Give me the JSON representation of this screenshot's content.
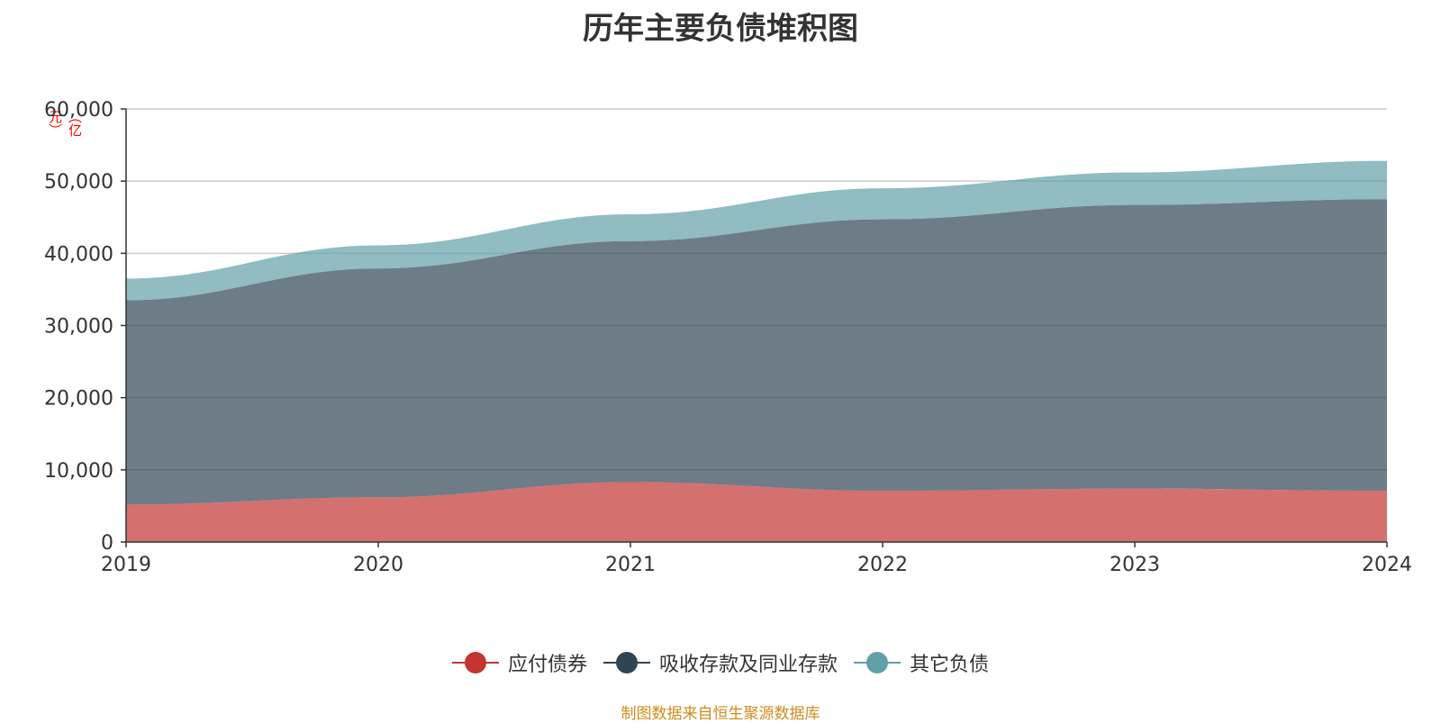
{
  "chart_data": {
    "type": "area",
    "stacked": true,
    "title": "历年主要负债堆积图",
    "unit": "亿元",
    "x": [
      "2019",
      "2020",
      "2021",
      "2022",
      "2023",
      "2024"
    ],
    "ylim": [
      0,
      60000
    ],
    "yticks": [
      "0",
      "10,000",
      "20,000",
      "30,000",
      "40,000",
      "50,000",
      "60,000"
    ],
    "grid": true,
    "legend_position": "bottom",
    "series": [
      {
        "name": "应付债券",
        "color": "#c23531",
        "values": [
          5200,
          6200,
          8300,
          7100,
          7400,
          7100
        ]
      },
      {
        "name": "吸收存款及同业存款",
        "color": "#2f4554",
        "values": [
          28300,
          31700,
          33400,
          37600,
          39300,
          40400
        ]
      },
      {
        "name": "其它负债",
        "color": "#61a0a8",
        "values": [
          3000,
          3200,
          3700,
          4300,
          4500,
          5300
        ]
      }
    ]
  },
  "source_note": "制图数据来自恒生聚源数据库"
}
